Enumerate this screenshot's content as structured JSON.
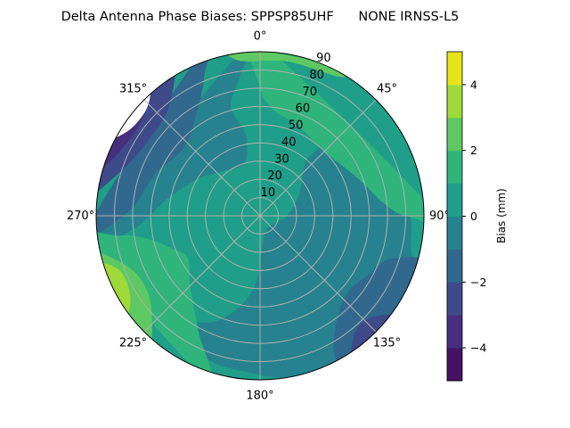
{
  "chart_data": {
    "type": "contour-polar",
    "title": "Delta Antenna Phase Biases: SPPSP85UHF      NONE IRNSS-L5",
    "angular_axis": {
      "direction": "clockwise",
      "zero": "top",
      "ticks": [
        0,
        45,
        90,
        135,
        180,
        225,
        270,
        315
      ],
      "tick_labels": [
        "0°",
        "45°",
        "90°",
        "135°",
        "180°",
        "225°",
        "270°",
        "315°"
      ]
    },
    "radial_axis": {
      "range": [
        0,
        90
      ],
      "ticks": [
        10,
        20,
        30,
        40,
        50,
        60,
        70,
        80,
        90
      ],
      "tick_labels": [
        "10",
        "20",
        "30",
        "40",
        "50",
        "60",
        "70",
        "80",
        "90"
      ]
    },
    "grid": true,
    "colorbar": {
      "label": "Bias (mm)",
      "colormap": "viridis",
      "range": [
        -5,
        5
      ],
      "levels": [
        -5,
        -4,
        -3,
        -2,
        -1,
        0,
        1,
        2,
        3,
        4,
        5
      ],
      "ticks": [
        -4,
        -2,
        0,
        2,
        4
      ],
      "tick_labels": [
        "−4",
        "−2",
        "0",
        "2",
        "4"
      ],
      "colors": [
        "#471164",
        "#472f7d",
        "#3e4a89",
        "#31688e",
        "#26828e",
        "#1f9e89",
        "#2fb47c",
        "#5ec962",
        "#a0da39",
        "#e5e419"
      ]
    },
    "base_level": 0,
    "regions": [
      {
        "level": -1,
        "points": [
          [
            40,
            40
          ],
          [
            60,
            25
          ],
          [
            90,
            15
          ],
          [
            130,
            8
          ],
          [
            170,
            12
          ],
          [
            185,
            40
          ],
          [
            200,
            60
          ],
          [
            215,
            70
          ],
          [
            232,
            74
          ],
          [
            228,
            84
          ],
          [
            200,
            84
          ],
          [
            185,
            86
          ],
          [
            170,
            90
          ],
          [
            150,
            95
          ],
          [
            120,
            95
          ],
          [
            100,
            84
          ],
          [
            90,
            82
          ],
          [
            75,
            72
          ],
          [
            60,
            62
          ],
          [
            45,
            55
          ]
        ]
      },
      {
        "level": -2,
        "points": [
          [
            108,
            95
          ],
          [
            108,
            76
          ],
          [
            118,
            68
          ],
          [
            132,
            64
          ],
          [
            146,
            74
          ],
          [
            152,
            88
          ],
          [
            148,
            95
          ]
        ]
      },
      {
        "level": -3,
        "points": [
          [
            127,
            95
          ],
          [
            131,
            84
          ],
          [
            140,
            82
          ],
          [
            147,
            95
          ]
        ]
      },
      {
        "level": -1,
        "points": [
          [
            262,
            95
          ],
          [
            264,
            70
          ],
          [
            280,
            52
          ],
          [
            300,
            40
          ],
          [
            320,
            32
          ],
          [
            343,
            30
          ],
          [
            350,
            45
          ],
          [
            345,
            62
          ],
          [
            352,
            78
          ],
          [
            356,
            95
          ]
        ]
      },
      {
        "level": -2,
        "points": [
          [
            266,
            95
          ],
          [
            272,
            72
          ],
          [
            292,
            62
          ],
          [
            312,
            56
          ],
          [
            328,
            66
          ],
          [
            338,
            82
          ],
          [
            340,
            95
          ]
        ]
      },
      {
        "level": -3,
        "points": [
          [
            278,
            95
          ],
          [
            288,
            80
          ],
          [
            304,
            74
          ],
          [
            320,
            78
          ],
          [
            328,
            95
          ]
        ]
      },
      {
        "level": -4,
        "points": [
          [
            285,
            95
          ],
          [
            294,
            85
          ],
          [
            310,
            84
          ],
          [
            320,
            95
          ]
        ]
      },
      {
        "level": -6,
        "points": [
          [
            297,
            95
          ],
          [
            303,
            86
          ],
          [
            314,
            86
          ],
          [
            319,
            95
          ]
        ]
      },
      {
        "level": 1,
        "points": [
          [
            0,
            95
          ],
          [
            0,
            70
          ],
          [
            8,
            58
          ],
          [
            22,
            54
          ],
          [
            45,
            50
          ],
          [
            70,
            58
          ],
          [
            84,
            68
          ],
          [
            90,
            80
          ],
          [
            88,
            95
          ]
        ]
      },
      {
        "level": 2,
        "points": [
          [
            -10,
            95
          ],
          [
            -8,
            86
          ],
          [
            10,
            86
          ],
          [
            30,
            88
          ],
          [
            32,
            95
          ]
        ]
      },
      {
        "level": 1,
        "points": [
          [
            198,
            95
          ],
          [
            208,
            72
          ],
          [
            224,
            55
          ],
          [
            240,
            46
          ],
          [
            250,
            52
          ],
          [
            258,
            62
          ],
          [
            262,
            78
          ],
          [
            260,
            95
          ]
        ]
      },
      {
        "level": 2,
        "points": [
          [
            222,
            95
          ],
          [
            228,
            80
          ],
          [
            240,
            74
          ],
          [
            251,
            80
          ],
          [
            256,
            95
          ]
        ]
      },
      {
        "level": 3,
        "points": [
          [
            233,
            95
          ],
          [
            238,
            84
          ],
          [
            249,
            83
          ],
          [
            253,
            95
          ]
        ]
      }
    ]
  }
}
